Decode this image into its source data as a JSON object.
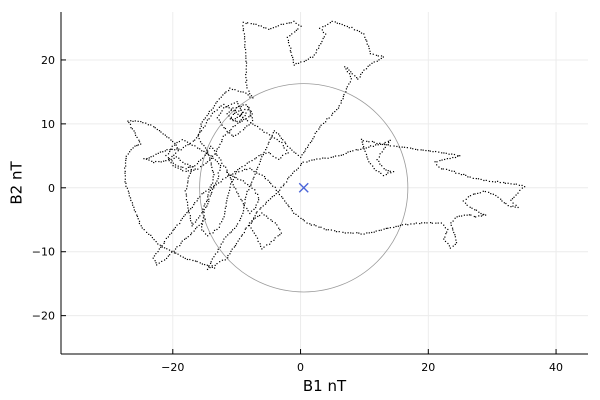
{
  "chart_data": {
    "type": "scatter",
    "title": "",
    "xlabel": "B1 nT",
    "ylabel": "B2 nT",
    "xlim": [
      -37.5,
      45
    ],
    "ylim": [
      -26,
      27.5
    ],
    "xticks": [
      -20,
      0,
      20,
      40
    ],
    "yticks": [
      -20,
      -10,
      0,
      10,
      20
    ],
    "xtick_labels": [
      "−20",
      "0",
      "20",
      "40"
    ],
    "ytick_labels": [
      "−20",
      "−10",
      "0",
      "10",
      "20"
    ],
    "grid": true,
    "legend": "none",
    "series": [
      {
        "kind": "trace-points",
        "color": "#000000",
        "path": [
          [
            -13.5,
            -12.5
          ],
          [
            -18,
            -11
          ],
          [
            -22,
            -9
          ],
          [
            -25,
            -6
          ],
          [
            -26.5,
            -2
          ],
          [
            -27.5,
            1
          ],
          [
            -27.5,
            3
          ],
          [
            -27.2,
            5
          ],
          [
            -26,
            6.5
          ],
          [
            -25,
            6.8
          ],
          [
            -26.5,
            9.5
          ],
          [
            -27,
            10.5
          ],
          [
            -25,
            10.3
          ],
          [
            -23,
            9.6
          ],
          [
            -21.5,
            8.5
          ],
          [
            -20,
            7.2
          ],
          [
            -19,
            6
          ],
          [
            -20.5,
            6
          ],
          [
            -22,
            5.5
          ],
          [
            -23,
            5
          ],
          [
            -24.5,
            4.5
          ],
          [
            -23,
            4
          ],
          [
            -21,
            4.2
          ],
          [
            -19.5,
            4.8
          ],
          [
            -18,
            3.8
          ],
          [
            -17,
            3.3
          ],
          [
            -17.5,
            1.5
          ],
          [
            -18,
            -0.5
          ],
          [
            -17.5,
            -3.5
          ],
          [
            -17,
            -6
          ],
          [
            -15.5,
            -4
          ],
          [
            -14.5,
            -1.5
          ],
          [
            -13.5,
            2
          ],
          [
            -14.5,
            5.5
          ],
          [
            -16,
            8
          ],
          [
            -15.5,
            10
          ],
          [
            -14,
            12.2
          ],
          [
            -12.5,
            14.2
          ],
          [
            -11,
            15.5
          ],
          [
            -9,
            15
          ],
          [
            -7.5,
            14
          ],
          [
            -8.5,
            16
          ],
          [
            -8.5,
            19
          ],
          [
            -8.7,
            22
          ],
          [
            -9,
            25.8
          ],
          [
            -7,
            25.6
          ],
          [
            -5,
            24.8
          ],
          [
            -3,
            25.5
          ],
          [
            -1,
            26
          ],
          [
            0,
            25.2
          ],
          [
            -2,
            23.5
          ],
          [
            -1.5,
            21.5
          ],
          [
            -1,
            19.2
          ],
          [
            2,
            20.5
          ],
          [
            4,
            24
          ],
          [
            3,
            25
          ],
          [
            5,
            26
          ],
          [
            8,
            25
          ],
          [
            10,
            24
          ],
          [
            11,
            21
          ],
          [
            13,
            20.5
          ],
          [
            10.5,
            19
          ],
          [
            9,
            17
          ],
          [
            7,
            19
          ],
          [
            8,
            17
          ],
          [
            7,
            15
          ],
          [
            6,
            12.5
          ],
          [
            4.5,
            11
          ],
          [
            3,
            9.5
          ],
          [
            1.5,
            7
          ],
          [
            0,
            4.8
          ],
          [
            -2,
            6.5
          ],
          [
            -4,
            9
          ],
          [
            -5.5,
            6
          ],
          [
            -7,
            2.5
          ],
          [
            -8.5,
            -1
          ],
          [
            -9,
            -4
          ],
          [
            -10,
            -6
          ],
          [
            -12,
            -8
          ],
          [
            -13,
            -10
          ],
          [
            -14,
            -11.5
          ],
          [
            -14.5,
            -12.7
          ],
          [
            -11.5,
            -11
          ],
          [
            -9.5,
            -8
          ],
          [
            -8,
            -5.5
          ],
          [
            -6,
            -4
          ],
          [
            -4,
            -5.5
          ],
          [
            -3,
            -7
          ],
          [
            -4.5,
            -8.5
          ],
          [
            -6,
            -9.5
          ],
          [
            -7,
            -7.5
          ],
          [
            -8,
            -6
          ],
          [
            -7,
            -4
          ],
          [
            -5,
            -2
          ],
          [
            -3,
            0
          ],
          [
            -1.5,
            2
          ],
          [
            0.5,
            4
          ],
          [
            3,
            4.5
          ],
          [
            6,
            5
          ],
          [
            9,
            6
          ],
          [
            11,
            6.5
          ],
          [
            13,
            6.8
          ],
          [
            14,
            7.5
          ],
          [
            13,
            6
          ],
          [
            12,
            4.5
          ],
          [
            13,
            3
          ],
          [
            14.5,
            2.5
          ],
          [
            13,
            2
          ],
          [
            11.5,
            3
          ],
          [
            10.5,
            4.5
          ],
          [
            10,
            6
          ],
          [
            9.5,
            7.5
          ],
          [
            12,
            7
          ],
          [
            15,
            6.5
          ],
          [
            18,
            6
          ],
          [
            22,
            5.5
          ],
          [
            25,
            5
          ],
          [
            23,
            4.5
          ],
          [
            21,
            4
          ],
          [
            22,
            3
          ],
          [
            24,
            2.5
          ],
          [
            27,
            1.5
          ],
          [
            30,
            1
          ],
          [
            33,
            0.7
          ],
          [
            35,
            0.2
          ],
          [
            34,
            -0.8
          ],
          [
            33,
            -2
          ],
          [
            34,
            -3
          ],
          [
            32.5,
            -2.8
          ],
          [
            31,
            -1.5
          ],
          [
            29,
            -0.5
          ],
          [
            27,
            -1
          ],
          [
            25.5,
            -2
          ],
          [
            26.5,
            -3
          ],
          [
            28,
            -3.8
          ],
          [
            29,
            -4.3
          ],
          [
            27.5,
            -4.5
          ],
          [
            26,
            -4.2
          ],
          [
            24.5,
            -4.5
          ],
          [
            23.5,
            -5.5
          ],
          [
            24,
            -7
          ],
          [
            24.5,
            -8.5
          ],
          [
            23.5,
            -9.5
          ],
          [
            22.5,
            -8
          ],
          [
            23,
            -6.5
          ],
          [
            22,
            -5.5
          ],
          [
            19,
            -5.5
          ],
          [
            16,
            -5.8
          ],
          [
            13,
            -6.5
          ],
          [
            10,
            -7.2
          ],
          [
            7,
            -7
          ],
          [
            4,
            -6.5
          ],
          [
            1,
            -5.5
          ],
          [
            -1,
            -4
          ],
          [
            -2.5,
            -2
          ],
          [
            -4,
            0
          ],
          [
            -6,
            2
          ],
          [
            -8,
            3
          ],
          [
            -10,
            2.5
          ],
          [
            -11,
            0.5
          ],
          [
            -11.5,
            -2
          ],
          [
            -12,
            -4.5
          ],
          [
            -13,
            -6.5
          ],
          [
            -14.5,
            -7.5
          ],
          [
            -15.5,
            -6.5
          ],
          [
            -15,
            -3.5
          ],
          [
            -14,
            -1
          ],
          [
            -13,
            1.5
          ],
          [
            -12.5,
            3.5
          ],
          [
            -14,
            5
          ],
          [
            -16.5,
            6.5
          ],
          [
            -18.5,
            7.5
          ],
          [
            -20,
            6.5
          ],
          [
            -21,
            5
          ],
          [
            -20,
            3.5
          ],
          [
            -18,
            2.5
          ],
          [
            -16,
            3
          ],
          [
            -14.5,
            4
          ],
          [
            -13,
            6
          ],
          [
            -12,
            8
          ],
          [
            -10.5,
            9.5
          ],
          [
            -9,
            11
          ],
          [
            -8,
            12.5
          ],
          [
            -7.5,
            10.5
          ],
          [
            -9,
            9
          ],
          [
            -10.5,
            8
          ],
          [
            -12,
            9.5
          ],
          [
            -13,
            11
          ],
          [
            -12,
            12.5
          ],
          [
            -10,
            13.5
          ],
          [
            -9,
            11.8
          ],
          [
            -10.5,
            10.5
          ],
          [
            -11.5,
            11.5
          ],
          [
            -10.5,
            12.5
          ],
          [
            -8.5,
            13
          ],
          [
            -7.5,
            11.5
          ],
          [
            -9.5,
            10.2
          ],
          [
            -11,
            10.8
          ],
          [
            -10.2,
            12
          ],
          [
            -8.8,
            12.2
          ],
          [
            -9.6,
            11
          ]
        ]
      },
      {
        "kind": "trace-points",
        "color": "#000000",
        "path": [
          [
            -15,
            -5
          ],
          [
            -17,
            -7
          ],
          [
            -19,
            -9
          ],
          [
            -21,
            -11
          ],
          [
            -22.5,
            -12
          ],
          [
            -23,
            -11
          ],
          [
            -21,
            -8
          ],
          [
            -19,
            -5.5
          ],
          [
            -17,
            -3
          ],
          [
            -15.5,
            -1
          ],
          [
            -14,
            0
          ],
          [
            -12.5,
            1
          ],
          [
            -11,
            2
          ],
          [
            -9.5,
            3
          ],
          [
            -8,
            4
          ],
          [
            -6.5,
            5
          ],
          [
            -5,
            5.5
          ],
          [
            -3.5,
            4.5
          ],
          [
            -2,
            5.5
          ],
          [
            -3,
            7
          ],
          [
            -4.5,
            8
          ],
          [
            -6,
            9
          ],
          [
            -7.5,
            10
          ],
          [
            -9,
            11
          ],
          [
            -10.5,
            12
          ],
          [
            -12,
            13
          ],
          [
            -13.5,
            12
          ],
          [
            -14.5,
            10.5
          ],
          [
            -15.5,
            9
          ],
          [
            -16.5,
            7.5
          ],
          [
            -18,
            6.5
          ],
          [
            -19.5,
            5.5
          ],
          [
            -20.5,
            4.5
          ],
          [
            -19.5,
            3.5
          ],
          [
            -18,
            3
          ],
          [
            -16.5,
            3.5
          ],
          [
            -15,
            5
          ],
          [
            -14,
            6.5
          ],
          [
            -13,
            5
          ],
          [
            -12,
            3.5
          ],
          [
            -11.2,
            2
          ],
          [
            -10.5,
            0.5
          ],
          [
            -9.8,
            -1
          ],
          [
            -9,
            -2.5
          ],
          [
            -8,
            -4
          ],
          [
            -7,
            -3
          ],
          [
            -6.5,
            -1.5
          ],
          [
            -7.5,
            0
          ],
          [
            -9,
            1
          ],
          [
            -10.5,
            1.8
          ],
          [
            -12,
            2.6
          ]
        ]
      },
      {
        "kind": "circle",
        "color": "#9a9a9a",
        "center": [
          0.5,
          0
        ],
        "radius": 16.3
      },
      {
        "kind": "marker",
        "marker": "x",
        "color": "#4a64d8",
        "points": [
          [
            0.5,
            0
          ]
        ]
      }
    ]
  }
}
